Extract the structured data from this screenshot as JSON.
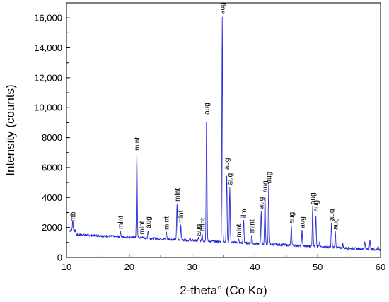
{
  "chart_data": {
    "type": "line",
    "xlabel": "2-theta° (Co Kα)",
    "ylabel": "Intensity (counts)",
    "xlim": [
      10,
      60
    ],
    "ylim": [
      0,
      17000
    ],
    "xticks": [
      10,
      20,
      30,
      40,
      50,
      60
    ],
    "yticks": [
      0,
      2000,
      4000,
      6000,
      8000,
      10000,
      12000,
      14000,
      16000
    ],
    "ytick_labels": [
      "0",
      "2000",
      "4000",
      "6000",
      "8000",
      "10,000",
      "12,000",
      "14,000",
      "16,000"
    ],
    "series_color": "#2b2bd6",
    "grid": false,
    "legend": "none",
    "peaks": [
      {
        "x": 11.0,
        "y": 2250,
        "label": "mb"
      },
      {
        "x": 18.6,
        "y": 1750,
        "label": "mlnt"
      },
      {
        "x": 21.2,
        "y": 7000,
        "label": "mlnt"
      },
      {
        "x": 22.0,
        "y": 1400,
        "label": "mlnt"
      },
      {
        "x": 23.0,
        "y": 1800,
        "label": "aug"
      },
      {
        "x": 25.9,
        "y": 1700,
        "label": "mlnt"
      },
      {
        "x": 27.6,
        "y": 3600,
        "label": "mlnt"
      },
      {
        "x": 28.2,
        "y": 2100,
        "label": "mlnt"
      },
      {
        "x": 31.0,
        "y": 1300,
        "label": "aug"
      },
      {
        "x": 31.6,
        "y": 1600,
        "label": "mlnt"
      },
      {
        "x": 32.3,
        "y": 9400,
        "label": "aug"
      },
      {
        "x": 34.8,
        "y": 16100,
        "label": "aug"
      },
      {
        "x": 35.5,
        "y": 5700,
        "label": "aug"
      },
      {
        "x": 36.0,
        "y": 4700,
        "label": "aug"
      },
      {
        "x": 37.4,
        "y": 1200,
        "label": "mlnt"
      },
      {
        "x": 38.2,
        "y": 2500,
        "label": "ilm"
      },
      {
        "x": 39.5,
        "y": 1500,
        "label": "mlnt"
      },
      {
        "x": 41.0,
        "y": 3100,
        "label": "aug"
      },
      {
        "x": 41.6,
        "y": 4200,
        "label": "aug"
      },
      {
        "x": 42.2,
        "y": 4800,
        "label": "aug"
      },
      {
        "x": 45.8,
        "y": 2100,
        "label": "aug"
      },
      {
        "x": 47.5,
        "y": 1800,
        "label": "aug"
      },
      {
        "x": 49.2,
        "y": 3400,
        "label": "aug"
      },
      {
        "x": 49.7,
        "y": 2900,
        "label": "aug"
      },
      {
        "x": 52.2,
        "y": 2300,
        "label": "aug"
      },
      {
        "x": 52.8,
        "y": 1700,
        "label": "aug"
      }
    ],
    "minor_peaks": [
      {
        "x": 14.2,
        "y": 1350
      },
      {
        "x": 15.3,
        "y": 1350
      },
      {
        "x": 20.4,
        "y": 1300
      },
      {
        "x": 24.3,
        "y": 1200
      },
      {
        "x": 29.7,
        "y": 1250
      },
      {
        "x": 33.2,
        "y": 1100
      },
      {
        "x": 43.3,
        "y": 900
      },
      {
        "x": 44.5,
        "y": 900
      },
      {
        "x": 50.3,
        "y": 1000
      },
      {
        "x": 54.0,
        "y": 900
      },
      {
        "x": 57.5,
        "y": 1100
      },
      {
        "x": 58.3,
        "y": 1200
      },
      {
        "x": 59.6,
        "y": 800
      }
    ]
  }
}
